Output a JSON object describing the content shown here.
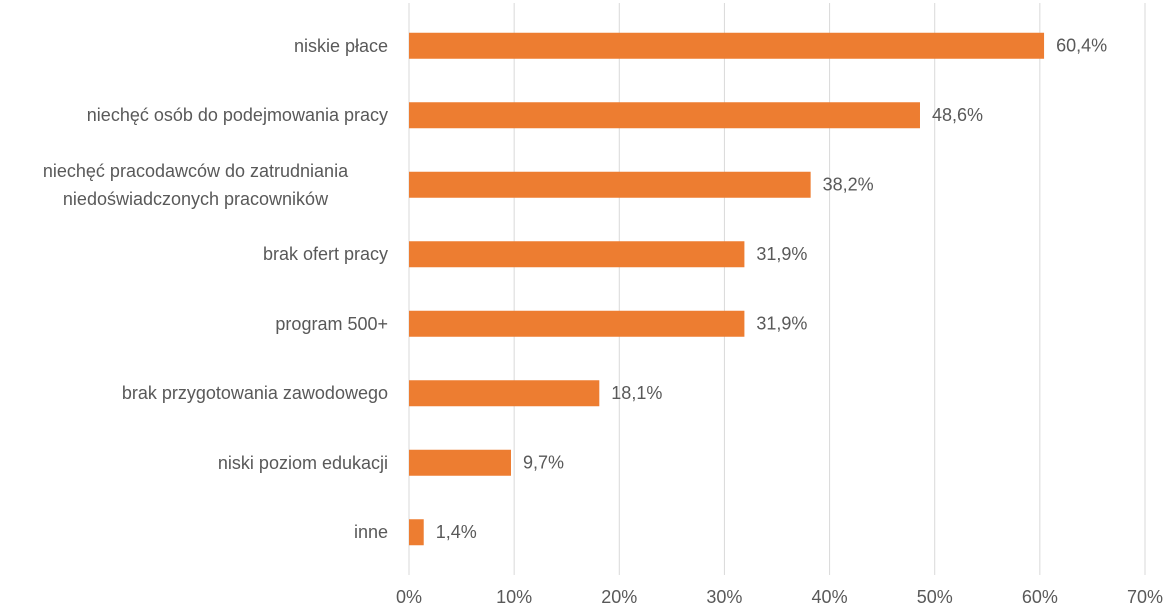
{
  "chart_data": {
    "type": "hbar",
    "categories": [
      "niskie płace",
      "niechęć osób do podejmowania pracy",
      "niechęć pracodawców do zatrudniania niedoświadczonych pracowników",
      "brak ofert pracy",
      "program 500+",
      "brak przygotowania zawodowego",
      "niski poziom edukacji",
      "inne"
    ],
    "values": [
      60.4,
      48.6,
      38.2,
      31.9,
      31.9,
      18.1,
      9.7,
      1.4
    ],
    "value_labels": [
      "60,4%",
      "48,6%",
      "38,2%",
      "31,9%",
      "31,9%",
      "18,1%",
      "9,7%",
      "1,4%"
    ],
    "color": "#ed7d31",
    "xlim": [
      0,
      70
    ],
    "xticks": [
      {
        "value": 0,
        "label": "0%"
      },
      {
        "value": 10,
        "label": "10%"
      },
      {
        "value": 20,
        "label": "20%"
      },
      {
        "value": 30,
        "label": "30%"
      },
      {
        "value": 40,
        "label": "40%"
      },
      {
        "value": 50,
        "label": "50%"
      },
      {
        "value": 60,
        "label": "60%"
      },
      {
        "value": 70,
        "label": "70%"
      }
    ],
    "grid": true
  }
}
